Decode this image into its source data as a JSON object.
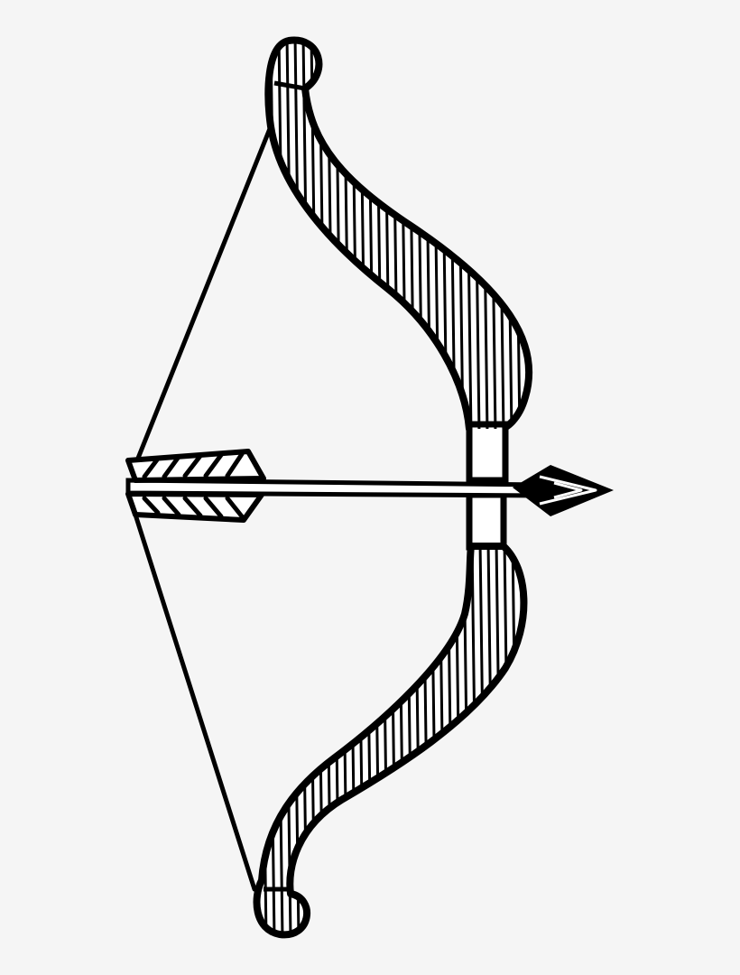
{
  "image": {
    "subject": "bow-and-arrow-icon",
    "style": "black line-art engraving",
    "colors": {
      "background": "#f5f5f5",
      "ink": "#000000",
      "fill": "#ffffff"
    }
  }
}
